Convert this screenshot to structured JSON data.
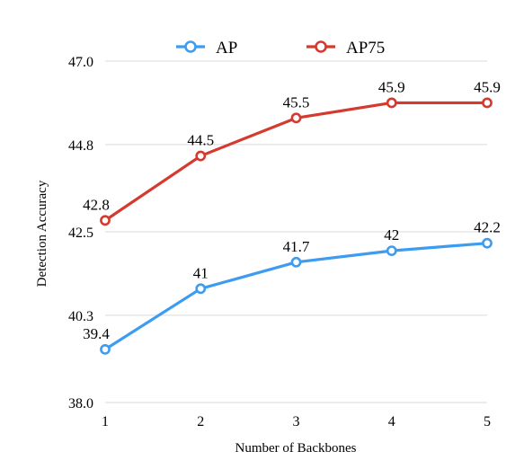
{
  "chart_data": {
    "type": "line",
    "title": "",
    "xlabel": "Number of Backbones",
    "ylabel": "Detection Accuracy",
    "categories": [
      "1",
      "2",
      "3",
      "4",
      "5"
    ],
    "x": [
      1,
      2,
      3,
      4,
      5
    ],
    "yticks": [
      "38.0",
      "40.3",
      "42.5",
      "44.8",
      "47.0"
    ],
    "ylim": [
      38.0,
      47.0
    ],
    "grid": true,
    "legend_position": "top-center",
    "series": [
      {
        "name": "AP",
        "color": "#3d9cf0",
        "values": [
          39.4,
          41,
          41.7,
          42,
          42.2
        ],
        "labels": [
          "39.4",
          "41",
          "41.7",
          "42",
          "42.2"
        ]
      },
      {
        "name": "AP75",
        "color": "#d43a2f",
        "values": [
          42.8,
          44.5,
          45.5,
          45.9,
          45.9
        ],
        "labels": [
          "42.8",
          "44.5",
          "45.5",
          "45.9",
          "45.9"
        ]
      }
    ]
  }
}
